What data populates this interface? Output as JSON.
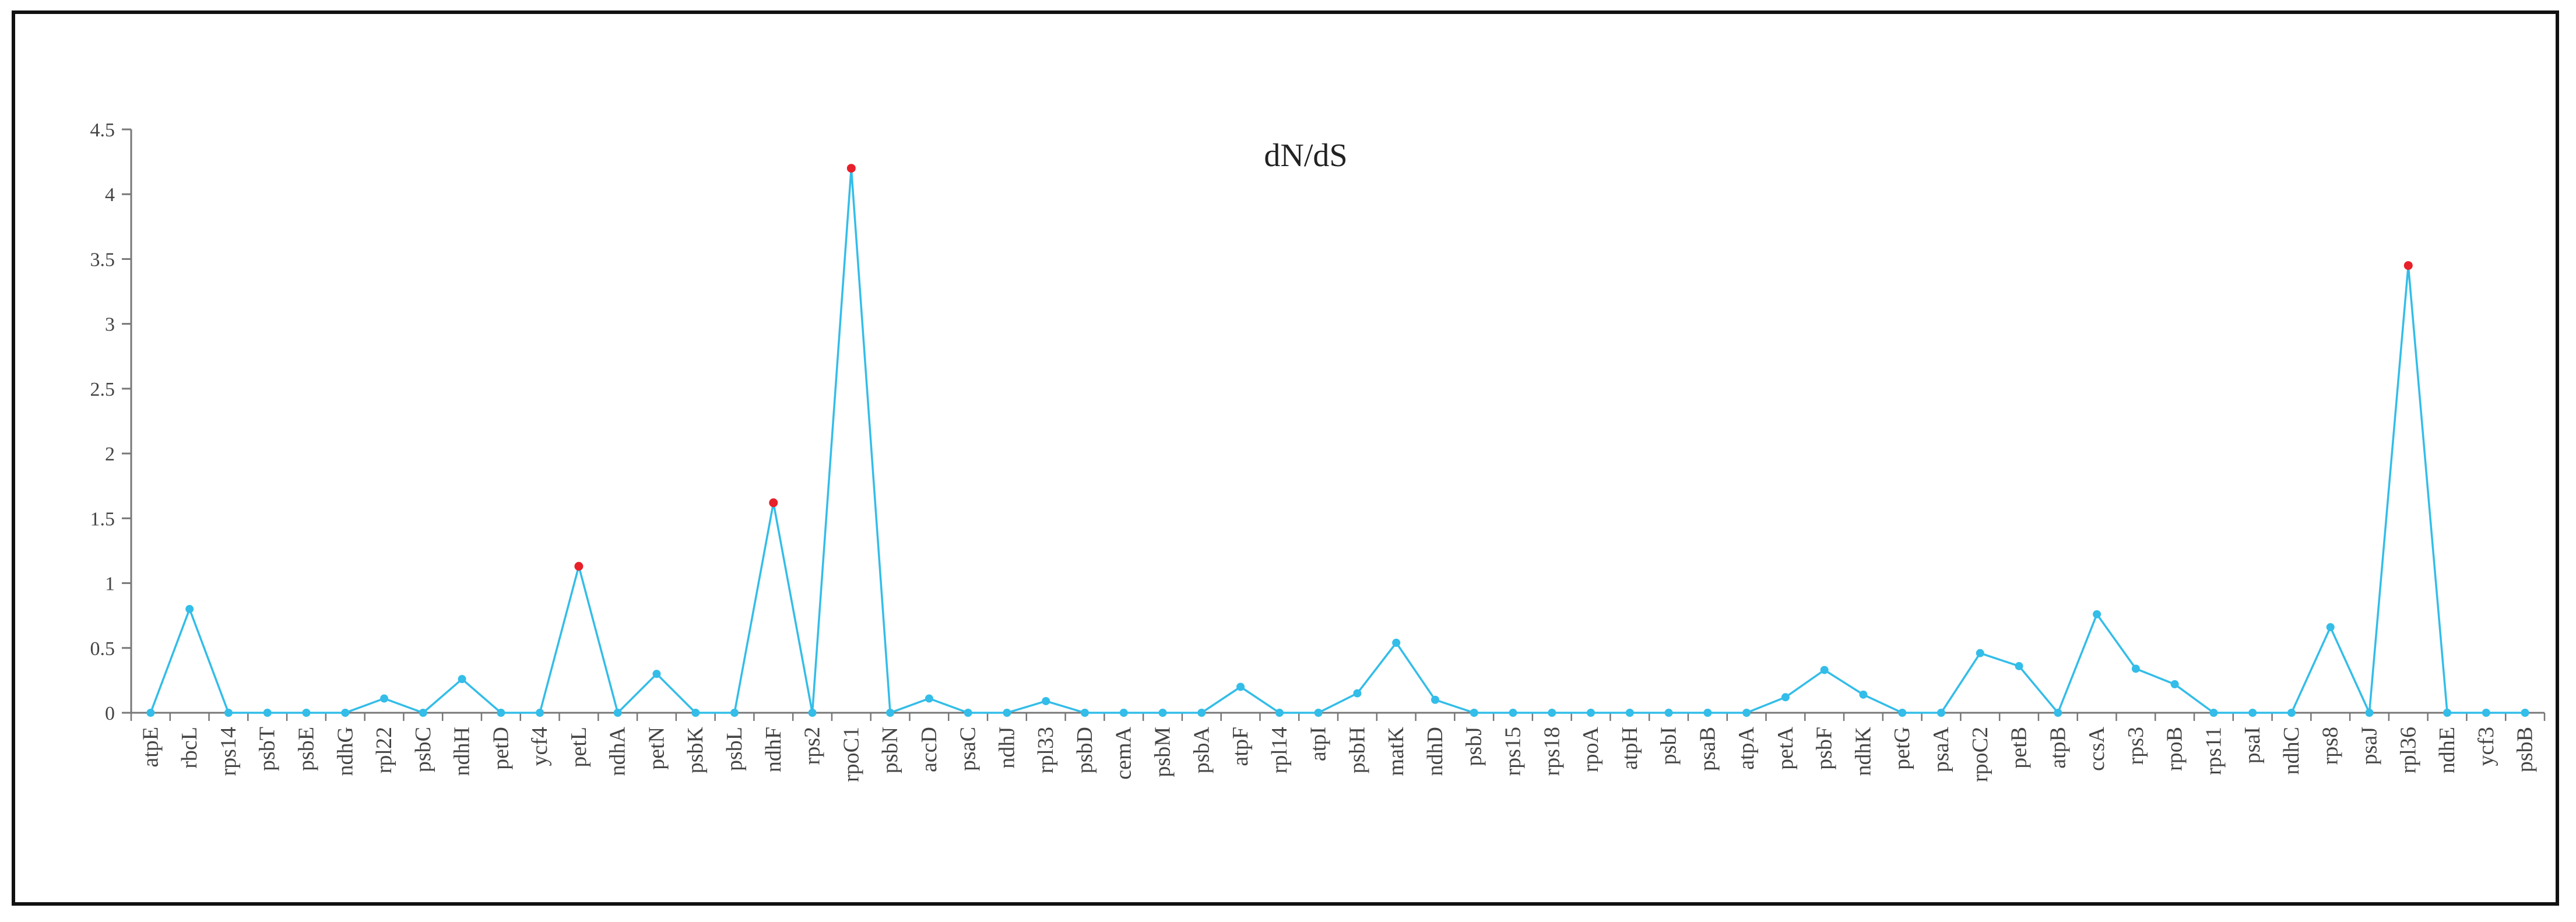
{
  "chart_data": {
    "type": "line",
    "title": "dN/dS",
    "xlabel": "",
    "ylabel": "",
    "ylim": [
      0,
      4.5
    ],
    "yticks": [
      "0",
      "0.5",
      "1",
      "1.5",
      "2",
      "2.5",
      "3",
      "3.5",
      "4",
      "4.5"
    ],
    "grid": false,
    "legend": "none",
    "colors": {
      "line": "#33bde8",
      "marker": "#33bde8",
      "highlight": "#e8202a",
      "axis": "#777777"
    },
    "categories": [
      "atpE",
      "rbcL",
      "rps14",
      "psbT",
      "psbE",
      "ndhG",
      "rpl22",
      "psbC",
      "ndhH",
      "petD",
      "ycf4",
      "petL",
      "ndhA",
      "petN",
      "psbK",
      "psbL",
      "ndhF",
      "rps2",
      "rpoC1",
      "psbN",
      "accD",
      "psaC",
      "ndhJ",
      "rpl33",
      "psbD",
      "cemA",
      "psbM",
      "psbA",
      "atpF",
      "rpl14",
      "atpI",
      "psbH",
      "matK",
      "ndhD",
      "psbJ",
      "rps15",
      "rps18",
      "rpoA",
      "atpH",
      "psbI",
      "psaB",
      "atpA",
      "petA",
      "psbF",
      "ndhK",
      "petG",
      "psaA",
      "rpoC2",
      "petB",
      "atpB",
      "ccsA",
      "rps3",
      "rpoB",
      "rps11",
      "psaI",
      "ndhC",
      "rps8",
      "psaJ",
      "rpl36",
      "ndhE",
      "ycf3",
      "psbB"
    ],
    "values": [
      0,
      0.8,
      0,
      0,
      0,
      0,
      0.11,
      0,
      0.26,
      0,
      0,
      1.13,
      0,
      0.3,
      0,
      0,
      1.62,
      0,
      4.2,
      0,
      0.11,
      0,
      0,
      0.09,
      0,
      0,
      0,
      0,
      0.2,
      0,
      0,
      0.15,
      0.54,
      0.1,
      0,
      0,
      0,
      0,
      0,
      0,
      0,
      0,
      0.12,
      0.33,
      0.14,
      0,
      0,
      0.46,
      0.36,
      0,
      0.76,
      0.34,
      0.22,
      0,
      0,
      0,
      0.66,
      0,
      3.45,
      0,
      0,
      0
    ],
    "highlighted": [
      "petL",
      "ndhF",
      "rpoC1",
      "rpl36"
    ]
  }
}
